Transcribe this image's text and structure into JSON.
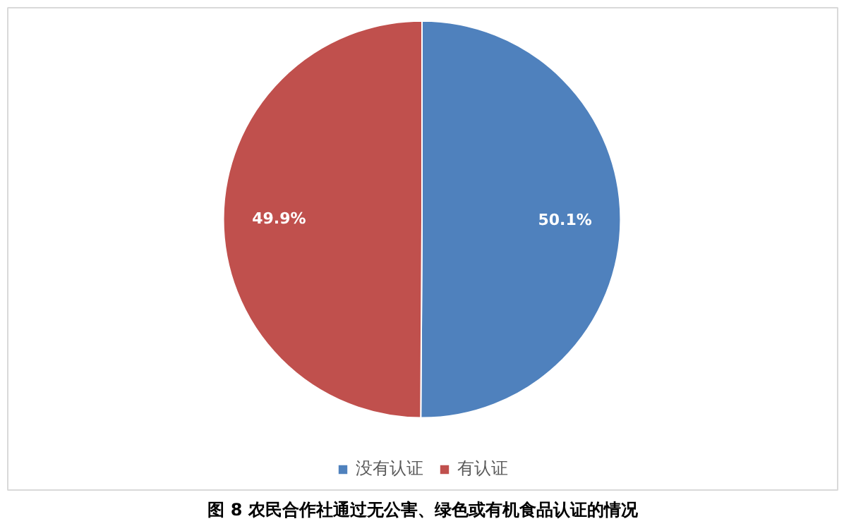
{
  "chart_data": {
    "type": "pie",
    "categories": [
      "没有认证",
      "有认证"
    ],
    "values": [
      50.1,
      49.9
    ],
    "colors": [
      "#4f81bd",
      "#c0504d"
    ],
    "value_labels": [
      "50.1%",
      "49.9%"
    ],
    "legend": "bottom",
    "annotations": [
      "图 8 农民合作社通过无公害、绿色或有机食品认证的情况"
    ]
  }
}
